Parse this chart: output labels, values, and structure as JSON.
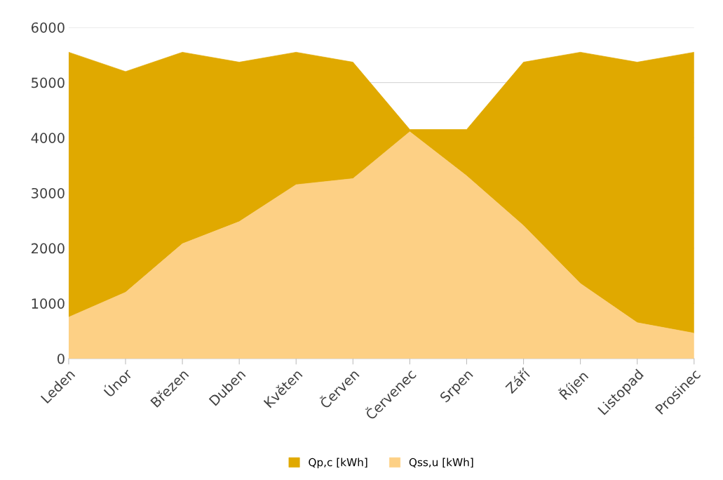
{
  "chart_data": {
    "type": "area",
    "categories": [
      "Leden",
      "Únor",
      "Březen",
      "Duben",
      "Květen",
      "Červen",
      "Červenec",
      "Srpen",
      "Září",
      "Říjen",
      "Listopad",
      "Prosinec"
    ],
    "series": [
      {
        "name": "Qp,c [kWh]",
        "color": "#e0a900",
        "values": [
          5550,
          5200,
          5550,
          5370,
          5550,
          5370,
          4150,
          4150,
          5370,
          5550,
          5370,
          5550
        ]
      },
      {
        "name": "Qss,u [kWh]",
        "color": "#fdd085",
        "values": [
          750,
          1200,
          2080,
          2480,
          3150,
          3260,
          4110,
          3310,
          2410,
          1360,
          650,
          460
        ]
      }
    ],
    "ylim": [
      0,
      6000
    ],
    "yticks": [
      0,
      1000,
      2000,
      3000,
      4000,
      5000,
      6000
    ],
    "grid": "y",
    "legend": "bottom"
  }
}
